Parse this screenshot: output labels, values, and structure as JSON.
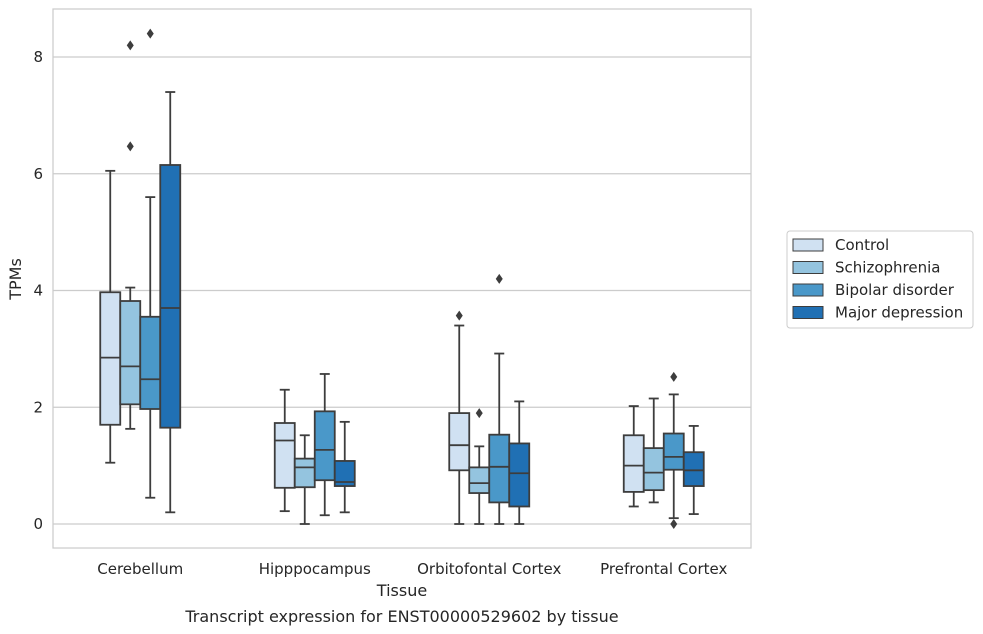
{
  "chart_data": {
    "type": "box",
    "caption": "Transcript expression for ENST00000529602 by tissue",
    "xlabel": "Tissue",
    "ylabel": "TPMs",
    "ylim": [
      -0.4,
      8.85
    ],
    "yticks": [
      0,
      2,
      4,
      6,
      8
    ],
    "grid": "horizontal",
    "legend_position": "right",
    "categories": [
      "Cerebellum",
      "Hipppocampus",
      "Orbitofontal Cortex",
      "Prefrontal Cortex"
    ],
    "series": [
      {
        "name": "Control",
        "color": "#d0e1f2",
        "boxes": [
          {
            "whislo": 1.05,
            "q1": 1.7,
            "med": 2.85,
            "q3": 3.97,
            "whishi": 6.05,
            "fliers": []
          },
          {
            "whislo": 0.22,
            "q1": 0.62,
            "med": 1.43,
            "q3": 1.73,
            "whishi": 2.3,
            "fliers": []
          },
          {
            "whislo": 0.0,
            "q1": 0.92,
            "med": 1.35,
            "q3": 1.9,
            "whishi": 3.4,
            "fliers": [
              3.57
            ]
          },
          {
            "whislo": 0.3,
            "q1": 0.55,
            "med": 1.0,
            "q3": 1.52,
            "whishi": 2.02,
            "fliers": []
          }
        ]
      },
      {
        "name": "Schizophrenia",
        "color": "#94c4df",
        "boxes": [
          {
            "whislo": 1.63,
            "q1": 2.05,
            "med": 2.7,
            "q3": 3.82,
            "whishi": 4.05,
            "fliers": [
              6.47,
              8.2
            ]
          },
          {
            "whislo": 0.0,
            "q1": 0.63,
            "med": 0.97,
            "q3": 1.12,
            "whishi": 1.52,
            "fliers": []
          },
          {
            "whislo": 0.0,
            "q1": 0.53,
            "med": 0.7,
            "q3": 0.97,
            "whishi": 1.33,
            "fliers": [
              1.9
            ]
          },
          {
            "whislo": 0.37,
            "q1": 0.58,
            "med": 0.88,
            "q3": 1.3,
            "whishi": 2.15,
            "fliers": []
          }
        ]
      },
      {
        "name": "Bipolar disorder",
        "color": "#4a98c9",
        "boxes": [
          {
            "whislo": 0.45,
            "q1": 1.97,
            "med": 2.48,
            "q3": 3.55,
            "whishi": 5.6,
            "fliers": [
              8.4
            ]
          },
          {
            "whislo": 0.15,
            "q1": 0.75,
            "med": 1.27,
            "q3": 1.93,
            "whishi": 2.57,
            "fliers": []
          },
          {
            "whislo": 0.0,
            "q1": 0.37,
            "med": 0.98,
            "q3": 1.53,
            "whishi": 2.92,
            "fliers": [
              4.2
            ]
          },
          {
            "whislo": 0.1,
            "q1": 0.93,
            "med": 1.15,
            "q3": 1.55,
            "whishi": 2.22,
            "fliers": [
              2.52,
              0.0
            ]
          }
        ]
      },
      {
        "name": "Major depression",
        "color": "#2070b4",
        "boxes": [
          {
            "whislo": 0.2,
            "q1": 1.65,
            "med": 3.7,
            "q3": 6.15,
            "whishi": 7.4,
            "fliers": []
          },
          {
            "whislo": 0.2,
            "q1": 0.65,
            "med": 0.72,
            "q3": 1.08,
            "whishi": 1.75,
            "fliers": []
          },
          {
            "whislo": 0.0,
            "q1": 0.3,
            "med": 0.87,
            "q3": 1.38,
            "whishi": 2.1,
            "fliers": []
          },
          {
            "whislo": 0.17,
            "q1": 0.65,
            "med": 0.92,
            "q3": 1.23,
            "whishi": 1.68,
            "fliers": []
          }
        ]
      }
    ]
  }
}
